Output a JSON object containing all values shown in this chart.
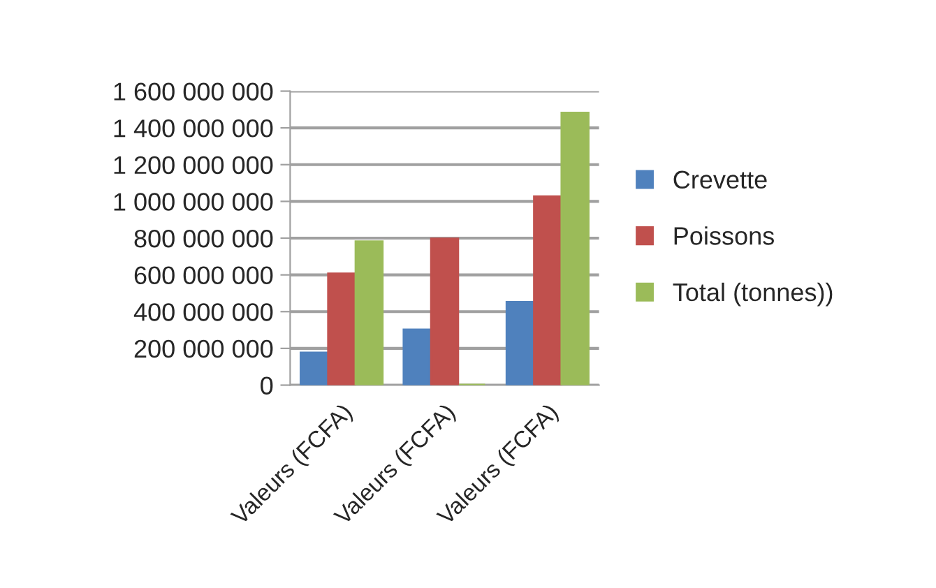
{
  "chart_data": {
    "type": "bar",
    "categories": [
      "Valeurs (FCFA)",
      "Valeurs (FCFA)",
      "Valeurs (FCFA)"
    ],
    "series": [
      {
        "name": "Crevette",
        "color": "#4f81bd",
        "values": [
          175000000,
          300000000,
          450000000
        ]
      },
      {
        "name": "Poissons",
        "color": "#c0504d",
        "values": [
          605000000,
          795000000,
          1025000000
        ]
      },
      {
        "name": "Total (tonnes))",
        "color": "#9bbb59",
        "values": [
          780000000,
          0,
          1480000000
        ]
      }
    ],
    "ylim": [
      0,
      1600000000
    ],
    "yticks": [
      {
        "value": 0,
        "label": "0"
      },
      {
        "value": 200000000,
        "label": "200 000 000"
      },
      {
        "value": 400000000,
        "label": "400 000 000"
      },
      {
        "value": 600000000,
        "label": "600 000 000"
      },
      {
        "value": 800000000,
        "label": "800 000 000"
      },
      {
        "value": 1000000000,
        "label": "1 000 000 000"
      },
      {
        "value": 1200000000,
        "label": "1 200 000 000"
      },
      {
        "value": 1400000000,
        "label": "1 400 000 000"
      },
      {
        "value": 1600000000,
        "label": "1 600 000 000"
      }
    ],
    "grid": "y",
    "legend": "right"
  }
}
